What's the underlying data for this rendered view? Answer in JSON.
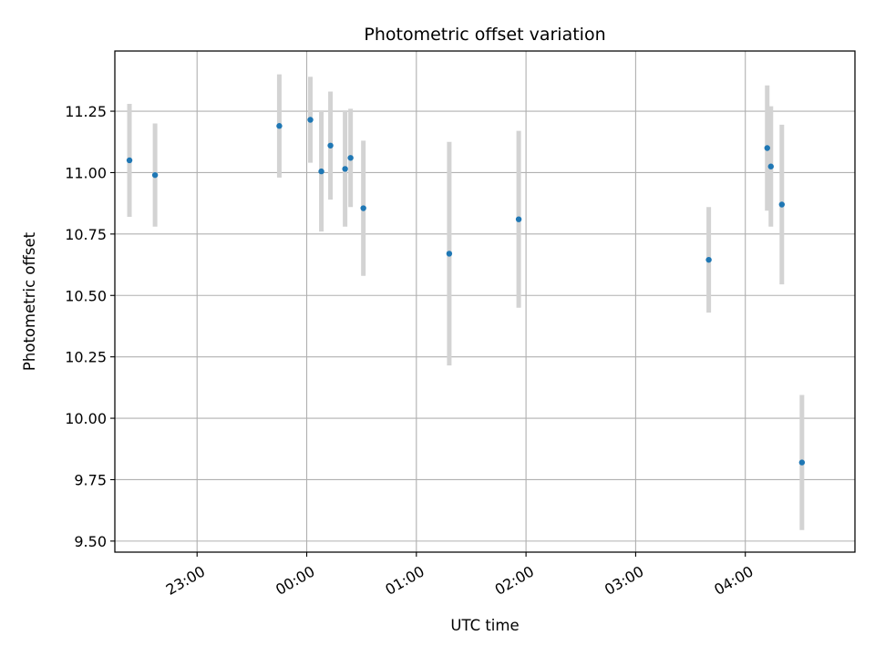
{
  "chart_data": {
    "type": "scatter",
    "title": "Photometric offset variation",
    "xlabel": "UTC time",
    "ylabel": "Photometric offset",
    "x_unit": "time of day (UTC, hours; ticks shown as HH:MM)",
    "xlim": [
      "22:15",
      "05:00"
    ],
    "ylim": [
      9.455,
      11.495
    ],
    "x_ticks": [
      "23:00",
      "00:00",
      "01:00",
      "02:00",
      "03:00",
      "04:00"
    ],
    "y_ticks": [
      "9.50",
      "9.75",
      "10.00",
      "10.25",
      "10.50",
      "10.75",
      "11.00",
      "11.25"
    ],
    "grid": true,
    "legend": "none",
    "colors": {
      "point": "#1f77b4",
      "errorbar": "#d3d3d3",
      "grid": "#b0b0b0",
      "axes": "#000000"
    },
    "points": [
      {
        "x": "22:23",
        "y": 11.05,
        "yerr": 0.23
      },
      {
        "x": "22:37",
        "y": 10.99,
        "yerr": 0.21
      },
      {
        "x": "23:45",
        "y": 11.19,
        "yerr": 0.21
      },
      {
        "x": "00:02",
        "y": 11.215,
        "yerr": 0.175
      },
      {
        "x": "00:08",
        "y": 11.005,
        "yerr": 0.245
      },
      {
        "x": "00:13",
        "y": 11.11,
        "yerr": 0.22
      },
      {
        "x": "00:21",
        "y": 11.015,
        "yerr": 0.235
      },
      {
        "x": "00:24",
        "y": 11.06,
        "yerr": 0.2
      },
      {
        "x": "00:31",
        "y": 10.855,
        "yerr": 0.275
      },
      {
        "x": "01:18",
        "y": 10.67,
        "yerr": 0.455
      },
      {
        "x": "01:56",
        "y": 10.81,
        "yerr": 0.36
      },
      {
        "x": "03:40",
        "y": 10.645,
        "yerr": 0.215
      },
      {
        "x": "04:12",
        "y": 11.1,
        "yerr": 0.255
      },
      {
        "x": "04:14",
        "y": 11.025,
        "yerr": 0.245
      },
      {
        "x": "04:20",
        "y": 10.87,
        "yerr": 0.325
      },
      {
        "x": "04:31",
        "y": 9.82,
        "yerr": 0.275
      }
    ]
  }
}
